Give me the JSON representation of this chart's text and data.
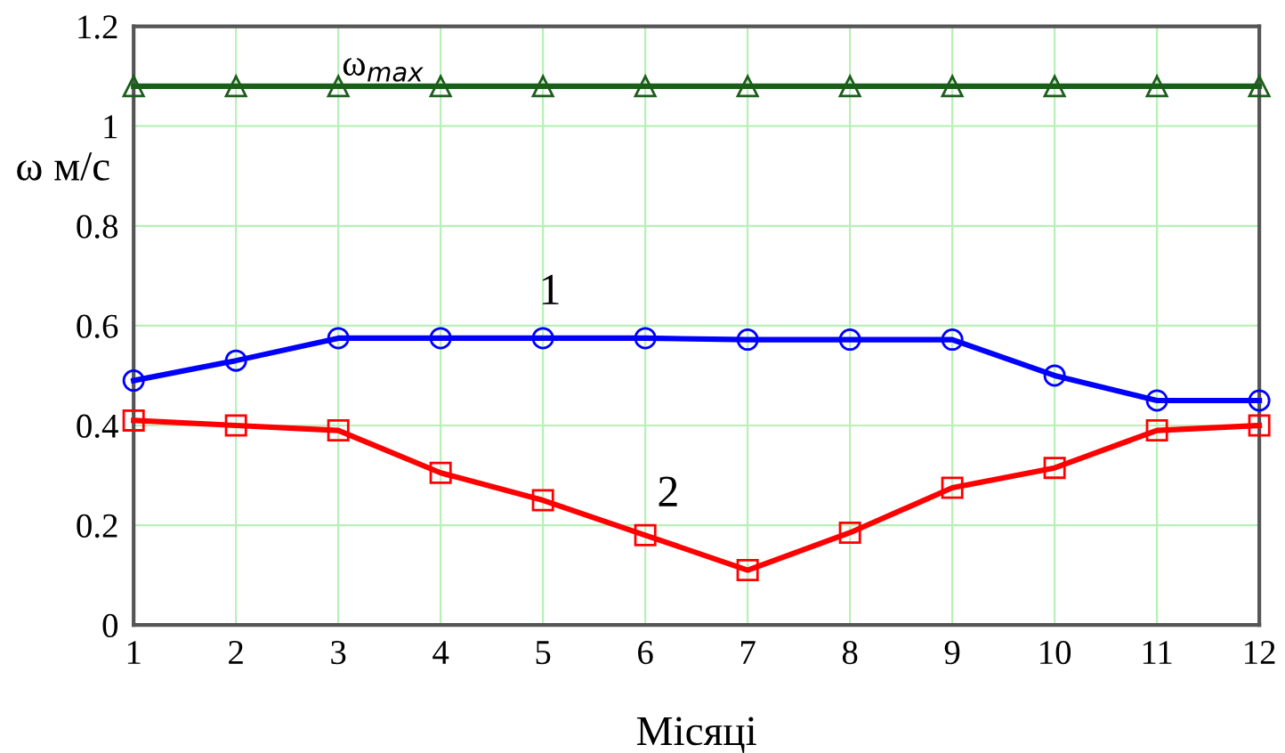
{
  "chart_data": {
    "type": "line",
    "xlabel": "Місяці",
    "ylabel": "ω м/с",
    "x": [
      1,
      2,
      3,
      4,
      5,
      6,
      7,
      8,
      9,
      10,
      11,
      12
    ],
    "series": [
      {
        "name": "ω$_{max}$",
        "color": "#1a5e1a",
        "marker": "triangle",
        "values": [
          1.08,
          1.08,
          1.08,
          1.08,
          1.08,
          1.08,
          1.08,
          1.08,
          1.08,
          1.08,
          1.08,
          1.08
        ]
      },
      {
        "name": "1",
        "color": "#0000ff",
        "marker": "circle",
        "values": [
          0.49,
          0.53,
          0.575,
          0.575,
          0.575,
          0.575,
          0.572,
          0.572,
          0.572,
          0.5,
          0.45,
          0.45
        ]
      },
      {
        "name": "2",
        "color": "#ff0000",
        "marker": "square",
        "values": [
          0.41,
          0.4,
          0.39,
          0.305,
          0.25,
          0.18,
          0.11,
          0.185,
          0.275,
          0.315,
          0.39,
          0.4
        ]
      }
    ],
    "xlim": [
      1,
      12
    ],
    "ylim": [
      0,
      1.2
    ],
    "xticks": [
      1,
      2,
      3,
      4,
      5,
      6,
      7,
      8,
      9,
      10,
      11,
      12
    ],
    "yticks": [
      0,
      0.2,
      0.4,
      0.6,
      0.8,
      1,
      1.2
    ],
    "grid": true,
    "legend": false,
    "line_style": "solid"
  }
}
